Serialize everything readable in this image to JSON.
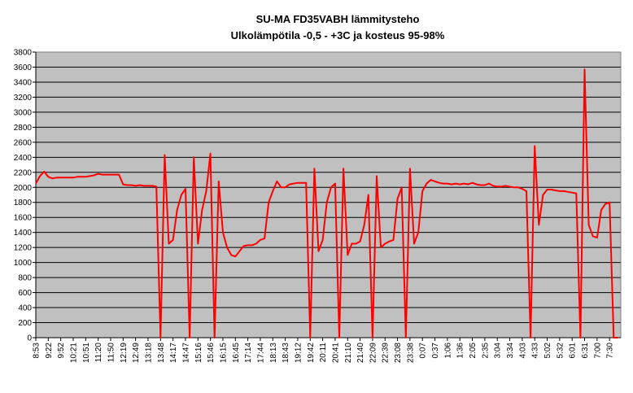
{
  "chart_data": {
    "type": "line",
    "title": "SU-MA FD35VABH lämmitysteho",
    "subtitle": "Ulkolämpötila  -0,5 - +3C ja kosteus 95-98%",
    "categories": [
      "8:53",
      null,
      null,
      "9:22",
      null,
      null,
      "9:52",
      null,
      null,
      "10:21",
      null,
      null,
      "10:51",
      null,
      null,
      "11:20",
      null,
      null,
      "11:50",
      null,
      null,
      "12:19",
      null,
      null,
      "12:49",
      null,
      null,
      "13:18",
      null,
      null,
      "13:48",
      null,
      null,
      "14:17",
      null,
      null,
      "14:47",
      null,
      null,
      "15:16",
      null,
      null,
      "15:46",
      null,
      null,
      "16:15",
      null,
      null,
      "16:45",
      null,
      null,
      "17:14",
      null,
      null,
      "17:44",
      null,
      null,
      "18:13",
      null,
      null,
      "18:43",
      null,
      null,
      "19:12",
      null,
      null,
      "19:42",
      null,
      null,
      "20:11",
      null,
      null,
      "20:41",
      null,
      null,
      "21:10",
      null,
      null,
      "21:40",
      null,
      null,
      "22:09",
      null,
      null,
      "22:39",
      null,
      null,
      "23:08",
      null,
      null,
      "23:38",
      null,
      null,
      "0:07",
      null,
      null,
      "0:37",
      null,
      null,
      "1:06",
      null,
      null,
      "1:36",
      null,
      null,
      "2:05",
      null,
      null,
      "2:35",
      null,
      null,
      "3:04",
      null,
      null,
      "3:34",
      null,
      null,
      "4:03",
      null,
      null,
      "4:33",
      null,
      null,
      "5:02",
      null,
      null,
      "5:32",
      null,
      null,
      "6:01",
      null,
      null,
      "6:31",
      null,
      null,
      "7:00",
      null,
      null,
      "7:30",
      null,
      null
    ],
    "values": [
      2050,
      2150,
      2210,
      2140,
      2120,
      2130,
      2130,
      2130,
      2130,
      2130,
      2140,
      2140,
      2140,
      2150,
      2160,
      2180,
      2170,
      2170,
      2170,
      2170,
      2170,
      2040,
      2030,
      2030,
      2020,
      2030,
      2020,
      2020,
      2020,
      2010,
      0,
      2430,
      1250,
      1300,
      1700,
      1900,
      1980,
      0,
      2400,
      1250,
      1700,
      1950,
      2450,
      0,
      2080,
      1400,
      1200,
      1100,
      1080,
      1150,
      1220,
      1230,
      1230,
      1250,
      1300,
      1320,
      1800,
      1950,
      2080,
      2000,
      2000,
      2040,
      2050,
      2060,
      2060,
      2060,
      0,
      2250,
      1150,
      1300,
      1800,
      2000,
      2050,
      0,
      2250,
      1100,
      1250,
      1250,
      1280,
      1500,
      1900,
      0,
      2150,
      1200,
      1250,
      1280,
      1300,
      1850,
      2000,
      0,
      2250,
      1250,
      1400,
      1950,
      2050,
      2100,
      2080,
      2060,
      2050,
      2050,
      2040,
      2050,
      2040,
      2050,
      2040,
      2060,
      2040,
      2030,
      2030,
      2050,
      2020,
      2010,
      2010,
      2020,
      2010,
      2000,
      2000,
      1980,
      1950,
      0,
      2550,
      1500,
      1900,
      1970,
      1970,
      1960,
      1950,
      1950,
      1940,
      1930,
      1920,
      0,
      3570,
      1500,
      1350,
      1330,
      1700,
      1780,
      1800,
      0,
      0
    ],
    "color": "#ff0000",
    "ylim": [
      0,
      3800
    ],
    "yticks": [
      0,
      200,
      400,
      600,
      800,
      1000,
      1200,
      1400,
      1600,
      1800,
      2000,
      2200,
      2400,
      2600,
      2800,
      3000,
      3200,
      3400,
      3600,
      3800
    ],
    "grid": true
  }
}
